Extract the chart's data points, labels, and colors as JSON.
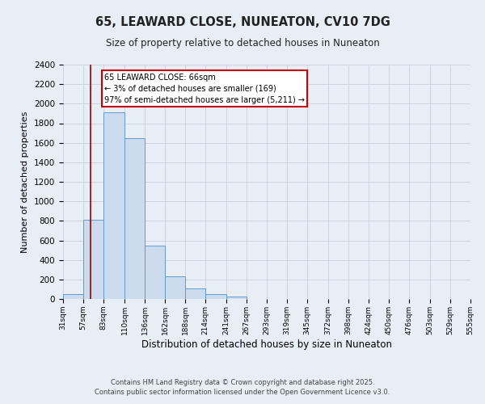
{
  "title": "65, LEAWARD CLOSE, NUNEATON, CV10 7DG",
  "subtitle": "Size of property relative to detached houses in Nuneaton",
  "xlabel": "Distribution of detached houses by size in Nuneaton",
  "ylabel": "Number of detached properties",
  "bar_edges": [
    31,
    57,
    83,
    110,
    136,
    162,
    188,
    214,
    241,
    267,
    293,
    319,
    345,
    372,
    398,
    424,
    450,
    476,
    503,
    529,
    555
  ],
  "bar_heights": [
    50,
    810,
    1910,
    1650,
    550,
    235,
    110,
    50,
    28,
    0,
    0,
    0,
    0,
    0,
    0,
    0,
    0,
    0,
    0,
    0
  ],
  "bar_color": "#ccdcee",
  "bar_edge_color": "#6699cc",
  "grid_color": "#ccccdd",
  "background_color": "#e8eef6",
  "vline_x": 66,
  "vline_color": "#990000",
  "annotation_text": "65 LEAWARD CLOSE: 66sqm\n← 3% of detached houses are smaller (169)\n97% of semi-detached houses are larger (5,211) →",
  "annotation_box_color": "#ffffff",
  "annotation_box_edge_color": "#cc0000",
  "ylim": [
    0,
    2400
  ],
  "yticks": [
    0,
    200,
    400,
    600,
    800,
    1000,
    1200,
    1400,
    1600,
    1800,
    2000,
    2200,
    2400
  ],
  "footer_line1": "Contains HM Land Registry data © Crown copyright and database right 2025.",
  "footer_line2": "Contains public sector information licensed under the Open Government Licence v3.0."
}
